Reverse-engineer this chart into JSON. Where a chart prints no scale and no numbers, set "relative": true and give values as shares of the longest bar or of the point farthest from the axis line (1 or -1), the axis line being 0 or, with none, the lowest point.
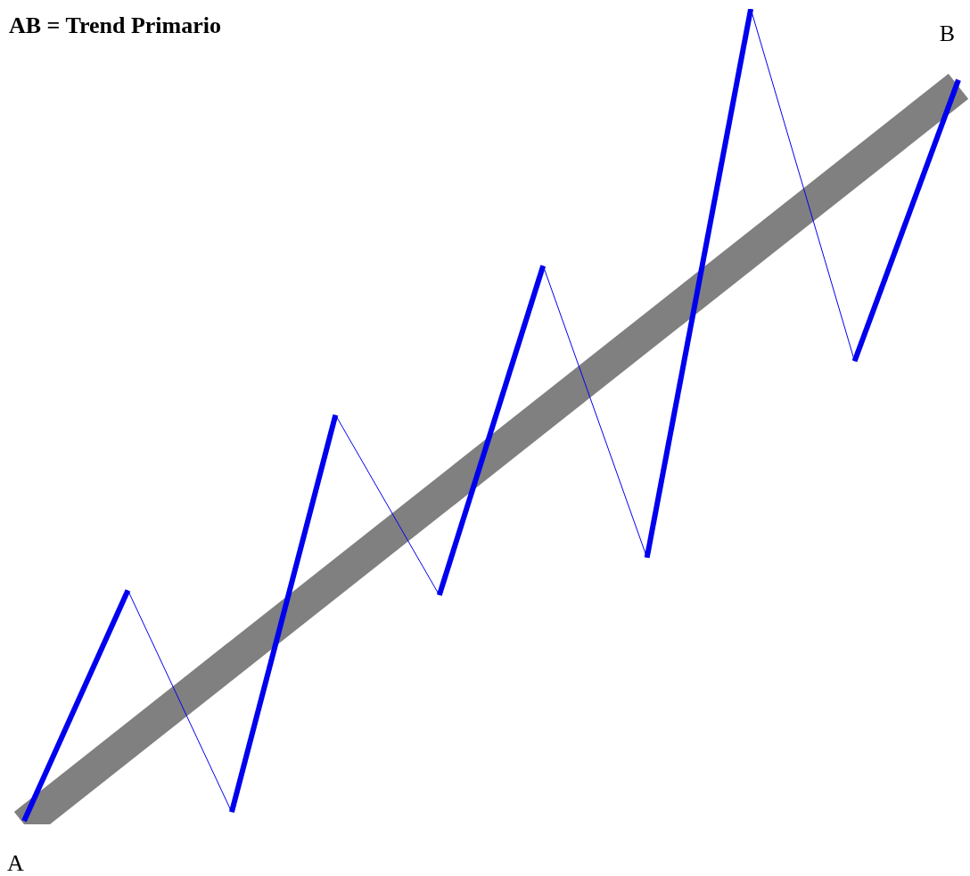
{
  "chart_data": {
    "type": "line",
    "title": "AB = Trend Primario",
    "relative": true,
    "legend": false,
    "categories": [
      null,
      null,
      null,
      null,
      null,
      null,
      null,
      null,
      null,
      null
    ],
    "series": [
      {
        "color": "#808080",
        "values": [
          0,
          null,
          null,
          null,
          null,
          null,
          null,
          null,
          null,
          0.905
        ]
      },
      {
        "color": "#0000ee",
        "values": [
          0.004,
          0.287,
          0.015,
          0.502,
          0.281,
          0.685,
          0.327,
          1,
          0.568,
          0.913
        ]
      }
    ],
    "annotations": [
      "A",
      "B"
    ]
  }
}
